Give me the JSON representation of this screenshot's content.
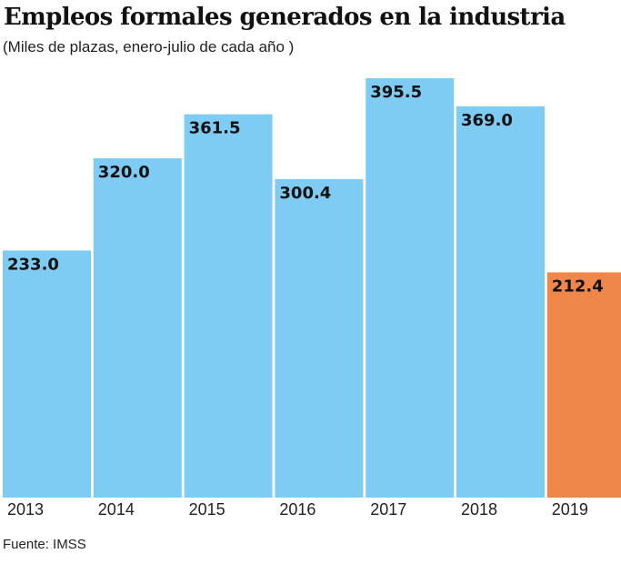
{
  "chart_data": {
    "type": "bar",
    "title": "Empleos formales generados en la industria",
    "subtitle": "(Miles de plazas, enero-julio de cada año )",
    "source": "Fuente: IMSS",
    "xlabel": "",
    "ylabel": "",
    "categories": [
      "2013",
      "2014",
      "2015",
      "2016",
      "2017",
      "2018",
      "2019"
    ],
    "values": [
      233.0,
      320.0,
      361.5,
      300.4,
      395.5,
      369.0,
      212.4
    ],
    "value_labels": [
      "233.0",
      "320.0",
      "361.5",
      "300.4",
      "395.5",
      "369.0",
      "212.4"
    ],
    "ylim": [
      0,
      395.5
    ],
    "grid": false,
    "colors": {
      "default": "#7ecbf3",
      "highlight": "#f0874a",
      "highlight_index": 6
    }
  }
}
